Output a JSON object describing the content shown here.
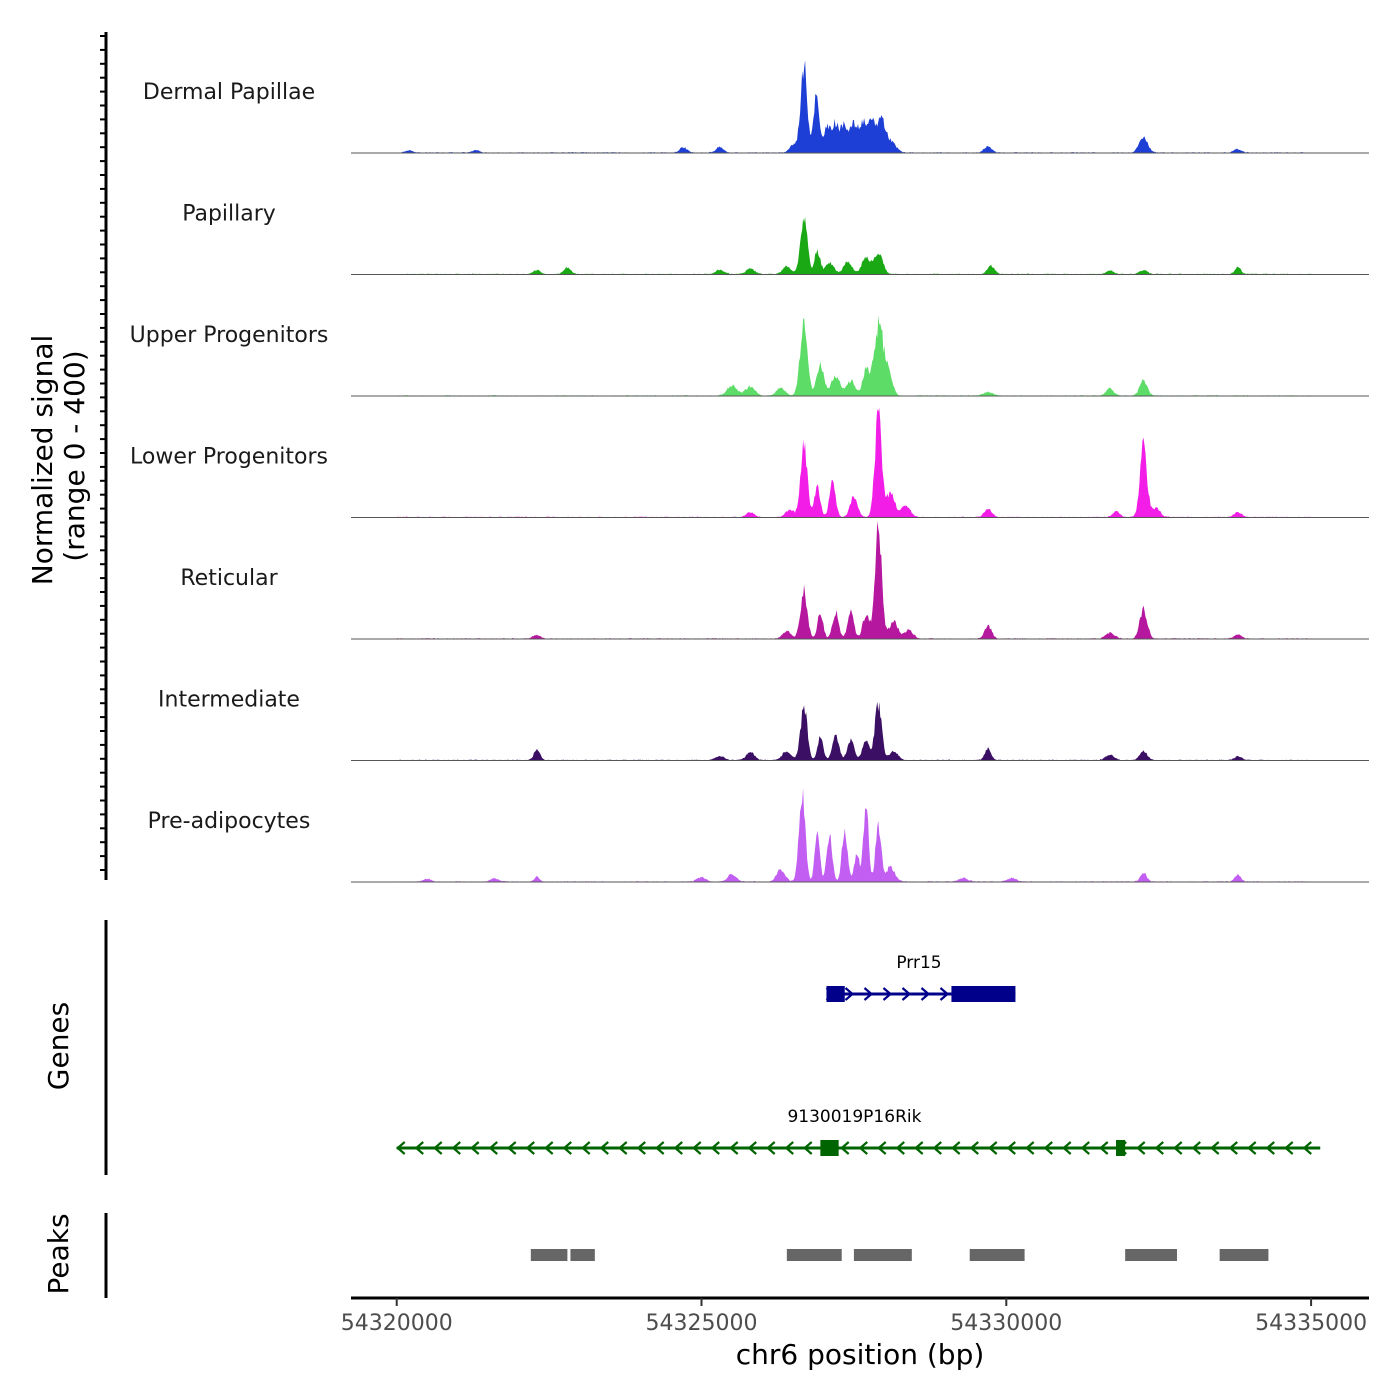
{
  "chart_data": {
    "type": "area",
    "title": "",
    "xlabel": "chr6 position (bp)",
    "ylabel": "Normalized signal",
    "ylabel_range": "(range 0 - 400)",
    "xlim": [
      54319250,
      54335950
    ],
    "ylim": [
      0,
      400
    ],
    "x_ticks": [
      54320000,
      54325000,
      54330000,
      54335000
    ],
    "x_tick_labels": [
      "54320000",
      "54325000",
      "54330000",
      "54335000"
    ],
    "signal_range": [
      54320000,
      54335000
    ],
    "tracks": [
      {
        "name": "Dermal Papillae",
        "color": "#1e3fd6",
        "peaks": [
          {
            "x": 54326680,
            "y": 290,
            "w": 55
          },
          {
            "x": 54326880,
            "y": 190,
            "w": 45
          },
          {
            "x": 54327050,
            "y": 80,
            "w": 60
          },
          {
            "x": 54327200,
            "y": 95,
            "w": 60
          },
          {
            "x": 54327350,
            "y": 85,
            "w": 60
          },
          {
            "x": 54327500,
            "y": 90,
            "w": 60
          },
          {
            "x": 54327650,
            "y": 95,
            "w": 60
          },
          {
            "x": 54327800,
            "y": 100,
            "w": 60
          },
          {
            "x": 54327950,
            "y": 110,
            "w": 60
          },
          {
            "x": 54328100,
            "y": 40,
            "w": 80
          },
          {
            "x": 54326500,
            "y": 25,
            "w": 60
          },
          {
            "x": 54325300,
            "y": 18,
            "w": 60
          },
          {
            "x": 54324700,
            "y": 18,
            "w": 60
          },
          {
            "x": 54329700,
            "y": 22,
            "w": 60
          },
          {
            "x": 54332250,
            "y": 52,
            "w": 70
          },
          {
            "x": 54333800,
            "y": 12,
            "w": 60
          },
          {
            "x": 54321300,
            "y": 8,
            "w": 60
          },
          {
            "x": 54320200,
            "y": 8,
            "w": 60
          }
        ]
      },
      {
        "name": "Papillary",
        "color": "#1aa815",
        "peaks": [
          {
            "x": 54326680,
            "y": 200,
            "w": 55
          },
          {
            "x": 54326900,
            "y": 80,
            "w": 45
          },
          {
            "x": 54327100,
            "y": 40,
            "w": 70
          },
          {
            "x": 54327400,
            "y": 40,
            "w": 70
          },
          {
            "x": 54327700,
            "y": 55,
            "w": 70
          },
          {
            "x": 54327900,
            "y": 75,
            "w": 70
          },
          {
            "x": 54326400,
            "y": 25,
            "w": 70
          },
          {
            "x": 54325800,
            "y": 18,
            "w": 70
          },
          {
            "x": 54325300,
            "y": 14,
            "w": 70
          },
          {
            "x": 54322800,
            "y": 22,
            "w": 60
          },
          {
            "x": 54322300,
            "y": 14,
            "w": 60
          },
          {
            "x": 54329750,
            "y": 28,
            "w": 60
          },
          {
            "x": 54331700,
            "y": 12,
            "w": 60
          },
          {
            "x": 54332250,
            "y": 14,
            "w": 60
          },
          {
            "x": 54333800,
            "y": 22,
            "w": 50
          }
        ]
      },
      {
        "name": "Upper Progenitors",
        "color": "#5ddd68",
        "peaks": [
          {
            "x": 54326680,
            "y": 250,
            "w": 60
          },
          {
            "x": 54326950,
            "y": 100,
            "w": 60
          },
          {
            "x": 54327200,
            "y": 70,
            "w": 70
          },
          {
            "x": 54327450,
            "y": 50,
            "w": 70
          },
          {
            "x": 54327700,
            "y": 90,
            "w": 55
          },
          {
            "x": 54327900,
            "y": 230,
            "w": 70
          },
          {
            "x": 54328050,
            "y": 90,
            "w": 70
          },
          {
            "x": 54325500,
            "y": 35,
            "w": 80
          },
          {
            "x": 54325800,
            "y": 30,
            "w": 80
          },
          {
            "x": 54326300,
            "y": 25,
            "w": 70
          },
          {
            "x": 54329700,
            "y": 12,
            "w": 70
          },
          {
            "x": 54331700,
            "y": 25,
            "w": 60
          },
          {
            "x": 54332250,
            "y": 50,
            "w": 60
          }
        ]
      },
      {
        "name": "Lower Progenitors",
        "color": "#f21ee8",
        "peaks": [
          {
            "x": 54326680,
            "y": 240,
            "w": 55
          },
          {
            "x": 54326900,
            "y": 110,
            "w": 45
          },
          {
            "x": 54327150,
            "y": 120,
            "w": 50
          },
          {
            "x": 54327500,
            "y": 70,
            "w": 60
          },
          {
            "x": 54327900,
            "y": 340,
            "w": 55
          },
          {
            "x": 54328100,
            "y": 80,
            "w": 70
          },
          {
            "x": 54328350,
            "y": 40,
            "w": 70
          },
          {
            "x": 54326450,
            "y": 25,
            "w": 70
          },
          {
            "x": 54325800,
            "y": 18,
            "w": 60
          },
          {
            "x": 54329700,
            "y": 30,
            "w": 60
          },
          {
            "x": 54331800,
            "y": 20,
            "w": 60
          },
          {
            "x": 54332250,
            "y": 250,
            "w": 55
          },
          {
            "x": 54332450,
            "y": 30,
            "w": 70
          },
          {
            "x": 54333800,
            "y": 18,
            "w": 60
          }
        ]
      },
      {
        "name": "Reticular",
        "color": "#b5179e",
        "peaks": [
          {
            "x": 54326680,
            "y": 160,
            "w": 55
          },
          {
            "x": 54326950,
            "y": 90,
            "w": 45
          },
          {
            "x": 54327200,
            "y": 90,
            "w": 50
          },
          {
            "x": 54327450,
            "y": 90,
            "w": 50
          },
          {
            "x": 54327700,
            "y": 80,
            "w": 55
          },
          {
            "x": 54327900,
            "y": 390,
            "w": 55
          },
          {
            "x": 54328150,
            "y": 60,
            "w": 70
          },
          {
            "x": 54328400,
            "y": 30,
            "w": 70
          },
          {
            "x": 54326400,
            "y": 25,
            "w": 70
          },
          {
            "x": 54329700,
            "y": 45,
            "w": 55
          },
          {
            "x": 54331700,
            "y": 20,
            "w": 70
          },
          {
            "x": 54332250,
            "y": 100,
            "w": 60
          },
          {
            "x": 54322300,
            "y": 12,
            "w": 60
          },
          {
            "x": 54333800,
            "y": 14,
            "w": 60
          }
        ]
      },
      {
        "name": "Intermediate",
        "color": "#3b0f63",
        "peaks": [
          {
            "x": 54326680,
            "y": 180,
            "w": 55
          },
          {
            "x": 54326950,
            "y": 80,
            "w": 45
          },
          {
            "x": 54327200,
            "y": 80,
            "w": 55
          },
          {
            "x": 54327450,
            "y": 70,
            "w": 55
          },
          {
            "x": 54327700,
            "y": 70,
            "w": 55
          },
          {
            "x": 54327900,
            "y": 190,
            "w": 55
          },
          {
            "x": 54328150,
            "y": 30,
            "w": 70
          },
          {
            "x": 54326400,
            "y": 30,
            "w": 70
          },
          {
            "x": 54325800,
            "y": 25,
            "w": 70
          },
          {
            "x": 54325300,
            "y": 15,
            "w": 70
          },
          {
            "x": 54322300,
            "y": 35,
            "w": 50
          },
          {
            "x": 54329700,
            "y": 40,
            "w": 50
          },
          {
            "x": 54331700,
            "y": 18,
            "w": 70
          },
          {
            "x": 54332250,
            "y": 30,
            "w": 60
          },
          {
            "x": 54333800,
            "y": 12,
            "w": 60
          }
        ]
      },
      {
        "name": "Pre-adipocytes",
        "color": "#c25ff2",
        "peaks": [
          {
            "x": 54326650,
            "y": 310,
            "w": 50
          },
          {
            "x": 54326900,
            "y": 180,
            "w": 40
          },
          {
            "x": 54327100,
            "y": 150,
            "w": 45
          },
          {
            "x": 54327350,
            "y": 180,
            "w": 45
          },
          {
            "x": 54327550,
            "y": 90,
            "w": 45
          },
          {
            "x": 54327700,
            "y": 270,
            "w": 40
          },
          {
            "x": 54327900,
            "y": 190,
            "w": 45
          },
          {
            "x": 54328100,
            "y": 50,
            "w": 70
          },
          {
            "x": 54326300,
            "y": 40,
            "w": 70
          },
          {
            "x": 54325500,
            "y": 25,
            "w": 70
          },
          {
            "x": 54325000,
            "y": 15,
            "w": 70
          },
          {
            "x": 54322300,
            "y": 18,
            "w": 40
          },
          {
            "x": 54321600,
            "y": 12,
            "w": 60
          },
          {
            "x": 54320500,
            "y": 10,
            "w": 60
          },
          {
            "x": 54332250,
            "y": 30,
            "w": 50
          },
          {
            "x": 54333800,
            "y": 25,
            "w": 50
          },
          {
            "x": 54329300,
            "y": 12,
            "w": 70
          },
          {
            "x": 54330100,
            "y": 12,
            "w": 70
          }
        ]
      }
    ],
    "genes": [
      {
        "name": "Prr15",
        "strand": "+",
        "start": 54327050,
        "end": 54330150,
        "color": "#00008b",
        "exons": [
          [
            54327050,
            54327350
          ],
          [
            54329100,
            54330150
          ]
        ]
      },
      {
        "name": "9130019P16Rik",
        "strand": "-",
        "start": 54320000,
        "end": 54335150,
        "color": "#006400",
        "exons": [
          [
            54326950,
            54327250
          ],
          [
            54331800,
            54331950
          ]
        ]
      }
    ],
    "peak_regions": [
      [
        54322200,
        54322800
      ],
      [
        54322850,
        54323250
      ],
      [
        54326400,
        54327300
      ],
      [
        54327500,
        54328450
      ],
      [
        54329400,
        54330300
      ],
      [
        54331950,
        54332800
      ],
      [
        54333500,
        54334300
      ]
    ],
    "peak_color": "#666666",
    "panel_labels": {
      "genes": "Genes",
      "peaks": "Peaks"
    }
  }
}
